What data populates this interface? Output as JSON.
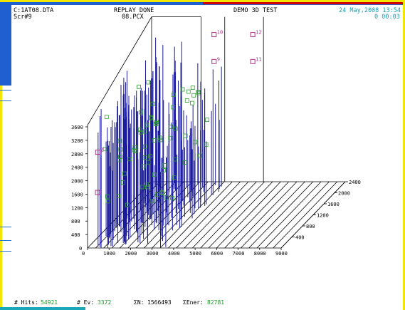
{
  "header": {
    "file": "C:1AT08.DTA",
    "screen": "Scr#9",
    "replay_status": "REPLAY DONE",
    "image_file": "08.PCX",
    "test_name": "DEMO 3D TEST",
    "date": "24 May,2008 13:54",
    "elapsed": "0 00:03"
  },
  "status": {
    "hits_label": "# Hits:",
    "hits_value": "54921",
    "events_label": "# Ev:",
    "events_value": "3372",
    "sum_n_label": "ΣN:",
    "sum_n_value": "1566493",
    "sum_energy_label": "ΣEner:",
    "sum_energy_value": "82781"
  },
  "colors": {
    "header_text": "#1a9db0",
    "status_value": "#1e9a2a",
    "trace_fill": "#1a1a9c",
    "green_marker": "#2e9e2e",
    "magenta_marker": "#b0308a",
    "frame_yellow": "#f2e600",
    "desktop_blue": "#1f5fd0"
  },
  "chart_data": {
    "type": "scatter",
    "projection": "3d",
    "x_ticks": [
      "0",
      "1000",
      "2000",
      "3000",
      "4000",
      "5000",
      "6000",
      "7000",
      "8000",
      "9000"
    ],
    "y_ticks": [
      "400",
      "800",
      "1200",
      "1600",
      "2000",
      "2400"
    ],
    "z_ticks": [
      "400",
      "800",
      "1200",
      "1600",
      "2000",
      "2400",
      "2800",
      "3200",
      "3600"
    ],
    "xlim": [
      0,
      9000
    ],
    "ylim": [
      0,
      2400
    ],
    "zlim": [
      0,
      3600
    ],
    "labeled_points": [
      {
        "label": "2",
        "x": 100,
        "y": 300,
        "z": 2600
      },
      {
        "label": "9",
        "x": 3400,
        "y": 2000,
        "z": 3900
      },
      {
        "label": "10",
        "x": 3400,
        "y": 2000,
        "z": 4700
      },
      {
        "label": "11",
        "x": 5200,
        "y": 2000,
        "z": 3900
      },
      {
        "label": "12",
        "x": 5200,
        "y": 2000,
        "z": 4700
      }
    ],
    "grid": true
  }
}
